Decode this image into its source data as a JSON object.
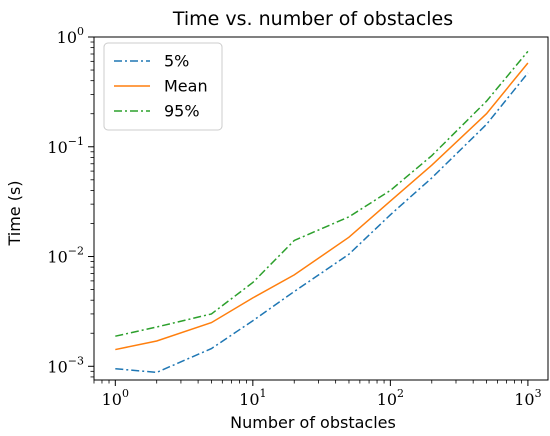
{
  "chart_data": {
    "type": "line",
    "title": "Time vs. number of obstacles",
    "xlabel": "Number of obstacles",
    "ylabel": "Time (s)",
    "x_scale": "log",
    "y_scale": "log",
    "xlim": [
      0.7,
      1400
    ],
    "ylim": [
      0.00075,
      1.0
    ],
    "x": [
      1,
      2,
      5,
      10,
      20,
      50,
      100,
      200,
      500,
      1000
    ],
    "series": [
      {
        "name": "5%",
        "color": "#1f77b4",
        "style": "dashdot",
        "values": [
          0.00095,
          0.00088,
          0.00145,
          0.0026,
          0.0048,
          0.0105,
          0.024,
          0.052,
          0.16,
          0.47
        ]
      },
      {
        "name": "Mean",
        "color": "#ff7f0e",
        "style": "solid",
        "values": [
          0.00142,
          0.0017,
          0.0025,
          0.0042,
          0.0068,
          0.015,
          0.032,
          0.068,
          0.2,
          0.58
        ]
      },
      {
        "name": "95%",
        "color": "#2ca02c",
        "style": "dashdot",
        "values": [
          0.00188,
          0.00228,
          0.003,
          0.0058,
          0.014,
          0.023,
          0.04,
          0.083,
          0.26,
          0.74
        ]
      }
    ],
    "x_ticks": [
      {
        "value": 1,
        "base": "10",
        "exp": "0"
      },
      {
        "value": 10,
        "base": "10",
        "exp": "1"
      },
      {
        "value": 100,
        "base": "10",
        "exp": "2"
      },
      {
        "value": 1000,
        "base": "10",
        "exp": "3"
      }
    ],
    "y_ticks": [
      {
        "value": 0.001,
        "base": "10",
        "exp": "−3"
      },
      {
        "value": 0.01,
        "base": "10",
        "exp": "−2"
      },
      {
        "value": 0.1,
        "base": "10",
        "exp": "−1"
      },
      {
        "value": 1,
        "base": "10",
        "exp": "0"
      }
    ],
    "legend_position": "top-left",
    "grid": false
  }
}
